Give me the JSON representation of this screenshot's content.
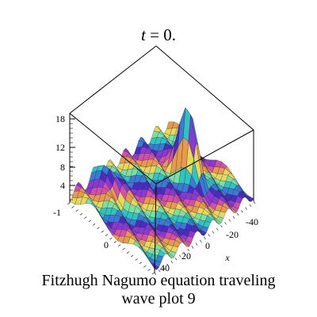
{
  "title": {
    "variable": "t",
    "rest": " = 0."
  },
  "caption": {
    "line1": "Fitzhugh Nagumo equation  traveling",
    "line2": "wave plot 9"
  },
  "chart_data": {
    "type": "surface",
    "title": "t = 0.",
    "xlabel": "x",
    "ylabel": "",
    "zlabel": "",
    "x_ticks": [
      "-40",
      "-20",
      "0",
      "20",
      "40"
    ],
    "y_ticks": [
      "-1",
      "0"
    ],
    "z_ticks": [
      "4",
      "8",
      "12",
      "18"
    ],
    "xlim": [
      -40,
      40
    ],
    "zlim": [
      0,
      18
    ],
    "peaks": [
      {
        "x": -20,
        "y": -0.3,
        "z": 18
      },
      {
        "x": 20,
        "y": 0.2,
        "z": 9
      }
    ],
    "ridge_amplitude": 3.5,
    "colormap": [
      "#4b2bc0",
      "#3a7bd5",
      "#2fc4c0",
      "#7ee0a0",
      "#e6d85a",
      "#e89a4a",
      "#d44fa8",
      "#8a3ad0"
    ],
    "box_color": "#000000",
    "grid": false
  }
}
